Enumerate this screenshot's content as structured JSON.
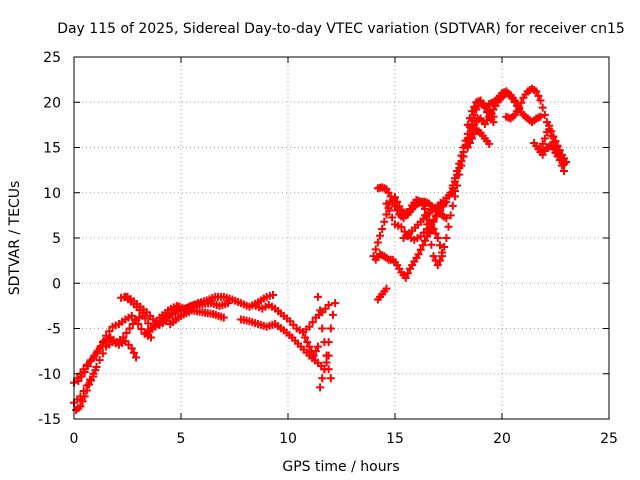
{
  "chart_data": {
    "type": "scatter",
    "title": "Day 115 of 2025, Sidereal Day-to-day VTEC variation (SDTVAR) for receiver cn15",
    "xlabel": "GPS time / hours",
    "ylabel": "SDTVAR / TECUs",
    "xlim": [
      0,
      25
    ],
    "ylim": [
      -15,
      25
    ],
    "xticks": [
      0,
      5,
      10,
      15,
      20,
      25
    ],
    "yticks": [
      -15,
      -10,
      -5,
      0,
      5,
      10,
      15,
      20,
      25
    ],
    "grid": true,
    "marker": "+",
    "color": "#ff0000",
    "segments": [
      [
        [
          0.0,
          -11.0
        ],
        [
          0.3,
          -10.0
        ],
        [
          0.6,
          -9.0
        ],
        [
          0.9,
          -8.3
        ],
        [
          1.2,
          -7.2
        ],
        [
          1.5,
          -5.8
        ],
        [
          1.8,
          -4.8
        ],
        [
          2.1,
          -4.5
        ],
        [
          2.4,
          -4.0
        ],
        [
          2.7,
          -3.6
        ],
        [
          3.0,
          -4.5
        ],
        [
          3.3,
          -5.6
        ],
        [
          3.6,
          -6.0
        ]
      ],
      [
        [
          0.0,
          -13.2
        ],
        [
          0.3,
          -12.5
        ],
        [
          0.6,
          -11.3
        ],
        [
          0.9,
          -10.0
        ],
        [
          1.2,
          -8.5
        ],
        [
          1.5,
          -7.0
        ],
        [
          1.8,
          -6.5
        ],
        [
          2.1,
          -6.8
        ],
        [
          2.4,
          -6.4
        ],
        [
          2.7,
          -7.2
        ],
        [
          2.9,
          -8.2
        ]
      ],
      [
        [
          0.1,
          -14.0
        ],
        [
          0.3,
          -13.6
        ],
        [
          0.5,
          -12.5
        ],
        [
          0.7,
          -11.2
        ],
        [
          0.9,
          -10.3
        ],
        [
          1.0,
          -9.6
        ]
      ],
      [
        [
          0.2,
          -10.8
        ],
        [
          0.5,
          -9.8
        ],
        [
          0.8,
          -8.5
        ],
        [
          1.1,
          -7.5
        ],
        [
          1.4,
          -6.4
        ],
        [
          1.7,
          -6.0
        ],
        [
          2.0,
          -6.5
        ],
        [
          2.3,
          -6.0
        ],
        [
          2.6,
          -5.0
        ],
        [
          2.9,
          -4.0
        ],
        [
          3.2,
          -3.6
        ]
      ],
      [
        [
          2.2,
          -1.6
        ],
        [
          2.5,
          -1.5
        ],
        [
          2.8,
          -2.0
        ],
        [
          3.1,
          -2.6
        ],
        [
          3.4,
          -3.2
        ],
        [
          3.7,
          -4.0
        ],
        [
          4.0,
          -4.6
        ],
        [
          4.3,
          -4.2
        ],
        [
          4.6,
          -3.4
        ],
        [
          4.9,
          -2.6
        ]
      ],
      [
        [
          2.4,
          -1.5
        ],
        [
          2.8,
          -2.3
        ],
        [
          3.2,
          -3.3
        ],
        [
          3.6,
          -5.0
        ],
        [
          4.0,
          -3.8
        ],
        [
          4.4,
          -3.0
        ],
        [
          4.8,
          -2.5
        ],
        [
          5.2,
          -2.8
        ],
        [
          5.6,
          -2.4
        ],
        [
          6.0,
          -2.3
        ],
        [
          6.4,
          -2.2
        ],
        [
          6.8,
          -2.5
        ],
        [
          7.2,
          -2.2
        ]
      ],
      [
        [
          3.4,
          -5.5
        ],
        [
          3.8,
          -4.8
        ],
        [
          4.2,
          -4.0
        ],
        [
          4.6,
          -3.4
        ],
        [
          5.0,
          -3.0
        ],
        [
          5.4,
          -2.6
        ],
        [
          5.8,
          -2.2
        ],
        [
          6.2,
          -1.9
        ],
        [
          6.6,
          -1.5
        ],
        [
          7.0,
          -1.5
        ],
        [
          7.4,
          -1.8
        ],
        [
          7.8,
          -2.2
        ],
        [
          8.2,
          -2.6
        ],
        [
          8.6,
          -2.1
        ],
        [
          9.0,
          -1.5
        ],
        [
          9.3,
          -1.3
        ]
      ],
      [
        [
          4.5,
          -4.5
        ],
        [
          5.0,
          -3.6
        ],
        [
          5.5,
          -3.0
        ],
        [
          6.0,
          -3.2
        ],
        [
          6.5,
          -3.4
        ],
        [
          7.0,
          -3.8
        ]
      ],
      [
        [
          8.5,
          -2.5
        ],
        [
          8.8,
          -2.8
        ],
        [
          9.1,
          -2.4
        ],
        [
          9.4,
          -2.8
        ],
        [
          9.8,
          -3.6
        ],
        [
          10.1,
          -4.2
        ],
        [
          10.4,
          -5.0
        ],
        [
          10.7,
          -5.4
        ],
        [
          11.0,
          -4.8
        ],
        [
          11.3,
          -3.8
        ],
        [
          11.6,
          -3.2
        ],
        [
          11.9,
          -2.4
        ]
      ],
      [
        [
          7.8,
          -4.0
        ],
        [
          8.2,
          -4.2
        ],
        [
          8.6,
          -4.5
        ],
        [
          9.0,
          -4.8
        ],
        [
          9.4,
          -4.5
        ],
        [
          9.8,
          -5.2
        ],
        [
          10.2,
          -6.0
        ],
        [
          10.6,
          -7.0
        ],
        [
          11.0,
          -8.0
        ],
        [
          11.4,
          -8.8
        ],
        [
          11.7,
          -9.5
        ],
        [
          11.9,
          -8.0
        ]
      ],
      [
        [
          10.8,
          -6.0
        ],
        [
          11.0,
          -7.0
        ],
        [
          11.2,
          -8.0
        ],
        [
          11.4,
          -7.0
        ]
      ],
      [
        [
          11.4,
          -1.5
        ],
        [
          11.5,
          -3.0
        ],
        [
          11.6,
          -5.0
        ],
        [
          11.7,
          -6.5
        ],
        [
          11.8,
          -8.0
        ],
        [
          11.9,
          -9.5
        ],
        [
          12.0,
          -10.5
        ]
      ],
      [
        [
          11.5,
          -11.5
        ],
        [
          11.6,
          -10.5
        ],
        [
          11.7,
          -9.5
        ],
        [
          11.8,
          -8.0
        ],
        [
          11.9,
          -6.5
        ],
        [
          12.0,
          -5.0
        ],
        [
          12.1,
          -3.5
        ],
        [
          12.2,
          -2.2
        ]
      ],
      [
        [
          14.2,
          -1.8
        ],
        [
          14.4,
          -1.2
        ],
        [
          14.6,
          -0.6
        ]
      ],
      [
        [
          14.0,
          3.0
        ],
        [
          14.2,
          4.5
        ],
        [
          14.4,
          6.0
        ],
        [
          14.6,
          7.6
        ],
        [
          14.8,
          9.0
        ],
        [
          15.0,
          9.5
        ],
        [
          15.2,
          8.5
        ],
        [
          15.4,
          7.8
        ],
        [
          15.6,
          7.6
        ],
        [
          15.8,
          8.2
        ],
        [
          16.0,
          8.7
        ],
        [
          16.2,
          9.0
        ],
        [
          16.4,
          9.0
        ],
        [
          16.6,
          8.8
        ],
        [
          16.8,
          8.3
        ],
        [
          17.0,
          7.9
        ],
        [
          17.2,
          7.5
        ],
        [
          17.4,
          7.2
        ]
      ],
      [
        [
          14.2,
          10.5
        ],
        [
          14.4,
          10.6
        ],
        [
          14.6,
          10.4
        ],
        [
          14.8,
          9.6
        ],
        [
          15.0,
          8.5
        ],
        [
          15.2,
          7.6
        ],
        [
          15.4,
          7.2
        ],
        [
          15.6,
          7.8
        ],
        [
          15.8,
          8.6
        ],
        [
          16.0,
          9.2
        ],
        [
          16.2,
          9.0
        ],
        [
          16.4,
          8.2
        ],
        [
          16.6,
          7.0
        ],
        [
          16.8,
          6.0
        ],
        [
          17.0,
          5.0
        ],
        [
          17.2,
          3.4
        ]
      ],
      [
        [
          14.1,
          2.6
        ],
        [
          14.3,
          3.2
        ],
        [
          14.5,
          3.0
        ],
        [
          14.7,
          2.6
        ],
        [
          14.9,
          2.6
        ],
        [
          15.1,
          2.0
        ],
        [
          15.3,
          1.2
        ],
        [
          15.5,
          0.6
        ],
        [
          15.7,
          1.6
        ],
        [
          15.9,
          2.4
        ],
        [
          16.1,
          3.2
        ],
        [
          16.3,
          4.2
        ],
        [
          16.5,
          5.2
        ],
        [
          16.7,
          6.2
        ],
        [
          16.9,
          7.4
        ],
        [
          17.1,
          8.4
        ],
        [
          17.3,
          8.8
        ]
      ],
      [
        [
          14.6,
          8.8
        ],
        [
          15.0,
          6.5
        ],
        [
          15.3,
          6.2
        ],
        [
          15.6,
          5.2
        ],
        [
          15.9,
          4.8
        ],
        [
          16.2,
          5.2
        ],
        [
          16.5,
          6.0
        ],
        [
          16.8,
          7.0
        ],
        [
          17.1,
          8.0
        ],
        [
          17.4,
          9.0
        ],
        [
          17.7,
          10.5
        ],
        [
          17.9,
          12.0
        ],
        [
          18.1,
          13.5
        ]
      ],
      [
        [
          15.4,
          5.0
        ],
        [
          15.8,
          5.8
        ],
        [
          16.2,
          6.8
        ],
        [
          16.6,
          7.8
        ],
        [
          17.0,
          8.6
        ],
        [
          17.4,
          9.4
        ],
        [
          17.8,
          10.2
        ]
      ],
      [
        [
          16.4,
          7.5
        ],
        [
          16.6,
          5.5
        ],
        [
          16.8,
          3.0
        ],
        [
          17.0,
          2.0
        ],
        [
          17.2,
          3.0
        ],
        [
          17.4,
          5.0
        ],
        [
          17.6,
          7.5
        ],
        [
          17.8,
          9.6
        ],
        [
          18.0,
          12.0
        ],
        [
          18.2,
          14.0
        ]
      ],
      [
        [
          17.6,
          10.0
        ],
        [
          17.8,
          11.6
        ],
        [
          18.0,
          13.2
        ],
        [
          18.2,
          15.0
        ],
        [
          18.4,
          16.5
        ],
        [
          18.6,
          18.0
        ],
        [
          18.8,
          19.2
        ],
        [
          19.0,
          20.0
        ],
        [
          19.2,
          19.6
        ],
        [
          19.4,
          19.0
        ],
        [
          19.6,
          18.4
        ]
      ],
      [
        [
          18.2,
          14.5
        ],
        [
          18.4,
          16.0
        ],
        [
          18.6,
          17.0
        ],
        [
          18.8,
          18.0
        ],
        [
          19.0,
          18.2
        ],
        [
          19.2,
          17.6
        ],
        [
          19.4,
          18.4
        ],
        [
          19.6,
          19.2
        ],
        [
          19.8,
          20.0
        ],
        [
          20.0,
          20.6
        ],
        [
          20.2,
          21.0
        ],
        [
          20.4,
          20.7
        ],
        [
          20.6,
          20.2
        ]
      ],
      [
        [
          18.4,
          17.5
        ],
        [
          18.6,
          19.0
        ],
        [
          18.8,
          20.0
        ],
        [
          19.0,
          20.2
        ],
        [
          19.2,
          19.4
        ],
        [
          19.4,
          18.4
        ],
        [
          19.6,
          17.8
        ]
      ],
      [
        [
          19.4,
          19.8
        ],
        [
          19.6,
          20.0
        ],
        [
          19.8,
          20.4
        ],
        [
          20.0,
          21.0
        ],
        [
          20.2,
          21.2
        ],
        [
          20.4,
          20.8
        ],
        [
          20.6,
          20.0
        ],
        [
          20.8,
          19.2
        ],
        [
          21.0,
          18.6
        ],
        [
          21.2,
          18.2
        ],
        [
          21.4,
          17.8
        ],
        [
          21.6,
          18.2
        ],
        [
          21.8,
          18.4
        ]
      ],
      [
        [
          20.2,
          18.4
        ],
        [
          20.4,
          18.2
        ],
        [
          20.6,
          18.6
        ],
        [
          20.8,
          19.4
        ],
        [
          21.0,
          20.5
        ],
        [
          21.2,
          21.2
        ],
        [
          21.4,
          21.5
        ],
        [
          21.6,
          21.2
        ],
        [
          21.8,
          20.2
        ],
        [
          22.0,
          18.6
        ],
        [
          22.2,
          17.0
        ],
        [
          22.4,
          15.6
        ],
        [
          22.6,
          14.4
        ],
        [
          22.8,
          13.6
        ],
        [
          22.9,
          13.2
        ]
      ],
      [
        [
          21.8,
          14.8
        ],
        [
          22.0,
          16.0
        ],
        [
          22.2,
          17.4
        ],
        [
          22.4,
          16.2
        ],
        [
          22.6,
          15.2
        ],
        [
          22.8,
          14.2
        ],
        [
          23.0,
          13.4
        ]
      ],
      [
        [
          21.5,
          15.5
        ],
        [
          21.7,
          14.8
        ],
        [
          21.9,
          14.2
        ],
        [
          22.1,
          15.0
        ],
        [
          22.3,
          15.2
        ],
        [
          22.5,
          14.4
        ],
        [
          22.7,
          13.6
        ],
        [
          22.9,
          12.4
        ]
      ],
      [
        [
          18.4,
          15.0
        ],
        [
          18.6,
          16.0
        ],
        [
          18.8,
          17.0
        ],
        [
          19.0,
          16.6
        ],
        [
          19.2,
          16.0
        ],
        [
          19.4,
          15.4
        ]
      ]
    ]
  }
}
